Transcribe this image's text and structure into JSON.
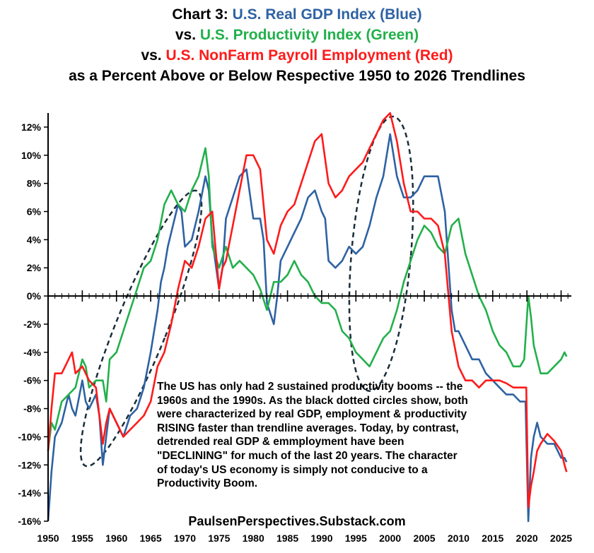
{
  "titles": {
    "line1_prefix": "Chart 3: ",
    "line1_colored": "U.S. Real GDP Index (Blue)",
    "line2_prefix": "vs. ",
    "line2_colored": "U.S. Productivity Index (Green)",
    "line3_prefix": "vs. ",
    "line3_colored": "U.S. NonFarm Payroll Employment (Red)",
    "line4": "as a Percent Above or Below Respective 1950 to 2026 Trendlines"
  },
  "annotation": "The US has only had 2 sustained productivity booms -- the 1960s and the 1990s.  As the black dotted circles show, both were characterized by real GDP, employment & productivity RISING faster than trendline averages.  Today, by contrast, detrended real GDP & emmployment have been \"DECLINING\" for much of the last 20 years.   The character of today's US economy is simply not conducive to a Productivity Boom.",
  "source": "PaulsenPerspectives.Substack.com",
  "colors": {
    "gdp": "#2e62a3",
    "productivity": "#22b04b",
    "employment": "#ff1a1a",
    "ellipse": "#1a2e3a"
  },
  "chart_data": {
    "type": "line",
    "title": "Chart 3: U.S. Real GDP Index (Blue) vs. U.S. Productivity Index (Green) vs. U.S. NonFarm Payroll Employment (Red) as a Percent Above or Below Respective 1950 to 2026 Trendlines",
    "xlim": [
      1950,
      2026.5
    ],
    "ylim": [
      -16,
      13
    ],
    "x_ticks": [
      "1950",
      "1955",
      "1960",
      "1965",
      "1970",
      "1975",
      "1980",
      "1985",
      "1990",
      "1995",
      "2000",
      "2005",
      "2010",
      "2015",
      "2020",
      "2025"
    ],
    "y_ticks": [
      "-16%",
      "-14%",
      "-12%",
      "-10%",
      "-8%",
      "-6%",
      "-4%",
      "-2%",
      "0%",
      "2%",
      "4%",
      "6%",
      "8%",
      "10%",
      "12%"
    ],
    "y_tick_values": [
      -16,
      -14,
      -12,
      -10,
      -8,
      -6,
      -4,
      -2,
      0,
      2,
      4,
      6,
      8,
      10,
      12
    ],
    "grid": false,
    "series": [
      {
        "key": "gdp",
        "points": [
          [
            1950,
            -16
          ],
          [
            1950.5,
            -12.5
          ],
          [
            1951,
            -10
          ],
          [
            1952,
            -9
          ],
          [
            1953,
            -7
          ],
          [
            1953.5,
            -8
          ],
          [
            1954,
            -8.5
          ],
          [
            1955,
            -6
          ],
          [
            1955.5,
            -7.5
          ],
          [
            1956,
            -8
          ],
          [
            1957,
            -7
          ],
          [
            1957.5,
            -8.5
          ],
          [
            1958,
            -12
          ],
          [
            1958.5,
            -10
          ],
          [
            1959,
            -8
          ],
          [
            1960,
            -9
          ],
          [
            1960.5,
            -9.5
          ],
          [
            1961,
            -10
          ],
          [
            1962,
            -8.5
          ],
          [
            1963,
            -8
          ],
          [
            1964,
            -6.5
          ],
          [
            1965,
            -4
          ],
          [
            1966,
            -1
          ],
          [
            1966.5,
            1
          ],
          [
            1967,
            2
          ],
          [
            1967.5,
            3.5
          ],
          [
            1968,
            4.5
          ],
          [
            1969,
            6.5
          ],
          [
            1969.5,
            6
          ],
          [
            1970,
            3.5
          ],
          [
            1971,
            4
          ],
          [
            1972,
            6
          ],
          [
            1973,
            8.5
          ],
          [
            1973.5,
            7.5
          ],
          [
            1974,
            4
          ],
          [
            1975,
            0.5
          ],
          [
            1975.5,
            2
          ],
          [
            1976,
            5.5
          ],
          [
            1977,
            7
          ],
          [
            1978,
            8.5
          ],
          [
            1979,
            9
          ],
          [
            1980,
            5.5
          ],
          [
            1981,
            5.5
          ],
          [
            1981.5,
            4
          ],
          [
            1982,
            -0.5
          ],
          [
            1983,
            -2
          ],
          [
            1983.5,
            0
          ],
          [
            1984,
            2.5
          ],
          [
            1985,
            3.5
          ],
          [
            1986,
            4.5
          ],
          [
            1987,
            5.5
          ],
          [
            1988,
            7
          ],
          [
            1989,
            7.5
          ],
          [
            1990,
            6
          ],
          [
            1990.5,
            5.5
          ],
          [
            1991,
            2.5
          ],
          [
            1992,
            2
          ],
          [
            1993,
            2.5
          ],
          [
            1994,
            3.5
          ],
          [
            1995,
            3
          ],
          [
            1996,
            3.5
          ],
          [
            1997,
            5
          ],
          [
            1998,
            7
          ],
          [
            1999,
            8.5
          ],
          [
            2000,
            11.5
          ],
          [
            2000.5,
            10
          ],
          [
            2001,
            8.5
          ],
          [
            2002,
            7
          ],
          [
            2003,
            7
          ],
          [
            2004,
            7.5
          ],
          [
            2005,
            8.5
          ],
          [
            2006,
            8.5
          ],
          [
            2007,
            8.5
          ],
          [
            2008,
            6
          ],
          [
            2009,
            -1
          ],
          [
            2009.5,
            -2.5
          ],
          [
            2010,
            -2.5
          ],
          [
            2011,
            -3.5
          ],
          [
            2012,
            -4.5
          ],
          [
            2013,
            -4.5
          ],
          [
            2014,
            -5.5
          ],
          [
            2015,
            -6
          ],
          [
            2016,
            -6.5
          ],
          [
            2017,
            -7
          ],
          [
            2018,
            -7
          ],
          [
            2019,
            -7.5
          ],
          [
            2019.8,
            -7.5
          ],
          [
            2020.2,
            -16
          ],
          [
            2020.6,
            -11.5
          ],
          [
            2021,
            -10
          ],
          [
            2021.5,
            -9
          ],
          [
            2022,
            -10
          ],
          [
            2023,
            -10.5
          ],
          [
            2024,
            -10.5
          ],
          [
            2025,
            -11.5
          ],
          [
            2025.5,
            -11.5
          ],
          [
            2025.8,
            -11.8
          ]
        ]
      },
      {
        "key": "productivity",
        "points": [
          [
            1950,
            -11
          ],
          [
            1950.5,
            -9
          ],
          [
            1951,
            -9.5
          ],
          [
            1952,
            -7.5
          ],
          [
            1953,
            -7
          ],
          [
            1954,
            -6.5
          ],
          [
            1955,
            -4.5
          ],
          [
            1955.5,
            -5
          ],
          [
            1956,
            -6.5
          ],
          [
            1957,
            -6
          ],
          [
            1958,
            -6
          ],
          [
            1958.5,
            -7.5
          ],
          [
            1959,
            -4.5
          ],
          [
            1960,
            -4
          ],
          [
            1961,
            -2.5
          ],
          [
            1962,
            -1
          ],
          [
            1963,
            0.5
          ],
          [
            1964,
            2
          ],
          [
            1965,
            2.5
          ],
          [
            1966,
            4
          ],
          [
            1967,
            6.5
          ],
          [
            1968,
            7.5
          ],
          [
            1969,
            6.5
          ],
          [
            1970,
            6
          ],
          [
            1971,
            7.5
          ],
          [
            1972,
            8.5
          ],
          [
            1973,
            10.5
          ],
          [
            1973.5,
            8.5
          ],
          [
            1974,
            3.5
          ],
          [
            1975,
            2
          ],
          [
            1976,
            3.5
          ],
          [
            1977,
            2
          ],
          [
            1978,
            2.5
          ],
          [
            1979,
            2
          ],
          [
            1980,
            1.5
          ],
          [
            1981,
            0.5
          ],
          [
            1982,
            -1
          ],
          [
            1983,
            1
          ],
          [
            1984,
            1
          ],
          [
            1985,
            1.5
          ],
          [
            1986,
            2.5
          ],
          [
            1987,
            1.5
          ],
          [
            1988,
            1
          ],
          [
            1989,
            0
          ],
          [
            1990,
            -0.5
          ],
          [
            1991,
            -0.5
          ],
          [
            1992,
            -1
          ],
          [
            1993,
            -2.5
          ],
          [
            1994,
            -3
          ],
          [
            1995,
            -4
          ],
          [
            1996,
            -4.5
          ],
          [
            1997,
            -5
          ],
          [
            1998,
            -4
          ],
          [
            1999,
            -3
          ],
          [
            2000,
            -2.5
          ],
          [
            2001,
            -1
          ],
          [
            2002,
            1
          ],
          [
            2003,
            2.5
          ],
          [
            2004,
            4
          ],
          [
            2005,
            5
          ],
          [
            2006,
            4.5
          ],
          [
            2007,
            3.5
          ],
          [
            2008,
            3
          ],
          [
            2009,
            5
          ],
          [
            2010,
            5.5
          ],
          [
            2011,
            3
          ],
          [
            2012,
            1.5
          ],
          [
            2013,
            0
          ],
          [
            2014,
            -1
          ],
          [
            2015,
            -2.5
          ],
          [
            2016,
            -3.5
          ],
          [
            2017,
            -4
          ],
          [
            2018,
            -5
          ],
          [
            2019,
            -5
          ],
          [
            2019.6,
            -4.5
          ],
          [
            2020.2,
            0
          ],
          [
            2020.6,
            -1.5
          ],
          [
            2021,
            -3.5
          ],
          [
            2022,
            -5.5
          ],
          [
            2023,
            -5.5
          ],
          [
            2024,
            -5
          ],
          [
            2025,
            -4.5
          ],
          [
            2025.5,
            -4
          ],
          [
            2025.8,
            -4.3
          ]
        ]
      },
      {
        "key": "employment",
        "points": [
          [
            1950,
            -11
          ],
          [
            1950.5,
            -8
          ],
          [
            1951,
            -5.5
          ],
          [
            1952,
            -5.5
          ],
          [
            1953,
            -4.5
          ],
          [
            1953.5,
            -4
          ],
          [
            1954,
            -5.5
          ],
          [
            1955,
            -5
          ],
          [
            1956,
            -6
          ],
          [
            1957,
            -6.5
          ],
          [
            1958,
            -10.5
          ],
          [
            1958.5,
            -9
          ],
          [
            1959,
            -8
          ],
          [
            1960,
            -9
          ],
          [
            1961,
            -10
          ],
          [
            1962,
            -9.5
          ],
          [
            1963,
            -9
          ],
          [
            1964,
            -8.5
          ],
          [
            1965,
            -7.5
          ],
          [
            1966,
            -5
          ],
          [
            1967,
            -4
          ],
          [
            1968,
            -2
          ],
          [
            1969,
            0.5
          ],
          [
            1970,
            2.5
          ],
          [
            1971,
            2
          ],
          [
            1972,
            3.5
          ],
          [
            1973,
            5.5
          ],
          [
            1974,
            6
          ],
          [
            1975,
            0.5
          ],
          [
            1975.5,
            2
          ],
          [
            1976,
            2.5
          ],
          [
            1977,
            5
          ],
          [
            1978,
            7.5
          ],
          [
            1979,
            10
          ],
          [
            1980,
            10
          ],
          [
            1981,
            9
          ],
          [
            1982,
            4
          ],
          [
            1983,
            3
          ],
          [
            1984,
            5
          ],
          [
            1985,
            6
          ],
          [
            1986,
            6.5
          ],
          [
            1987,
            8
          ],
          [
            1988,
            9.5
          ],
          [
            1989,
            11
          ],
          [
            1990,
            11.5
          ],
          [
            1991,
            8
          ],
          [
            1992,
            7
          ],
          [
            1993,
            7.5
          ],
          [
            1994,
            8.5
          ],
          [
            1995,
            9
          ],
          [
            1996,
            9.5
          ],
          [
            1997,
            10.5
          ],
          [
            1998,
            11.5
          ],
          [
            1999,
            12.5
          ],
          [
            2000,
            13
          ],
          [
            2001,
            11
          ],
          [
            2002,
            8
          ],
          [
            2003,
            6
          ],
          [
            2004,
            6
          ],
          [
            2005,
            5.5
          ],
          [
            2006,
            5.5
          ],
          [
            2007,
            5
          ],
          [
            2008,
            3
          ],
          [
            2009,
            -2.5
          ],
          [
            2010,
            -5
          ],
          [
            2011,
            -6
          ],
          [
            2012,
            -6
          ],
          [
            2013,
            -6.5
          ],
          [
            2014,
            -6
          ],
          [
            2015,
            -6
          ],
          [
            2016,
            -6
          ],
          [
            2017,
            -6.2
          ],
          [
            2018,
            -6.5
          ],
          [
            2019,
            -6.5
          ],
          [
            2019.9,
            -6.5
          ],
          [
            2020.2,
            -15
          ],
          [
            2020.6,
            -13.5
          ],
          [
            2021,
            -12.5
          ],
          [
            2021.5,
            -11
          ],
          [
            2022,
            -10.5
          ],
          [
            2023,
            -9.8
          ],
          [
            2024,
            -10.3
          ],
          [
            2025,
            -11
          ],
          [
            2025.5,
            -12
          ],
          [
            2025.8,
            -12.5
          ]
        ]
      }
    ]
  }
}
